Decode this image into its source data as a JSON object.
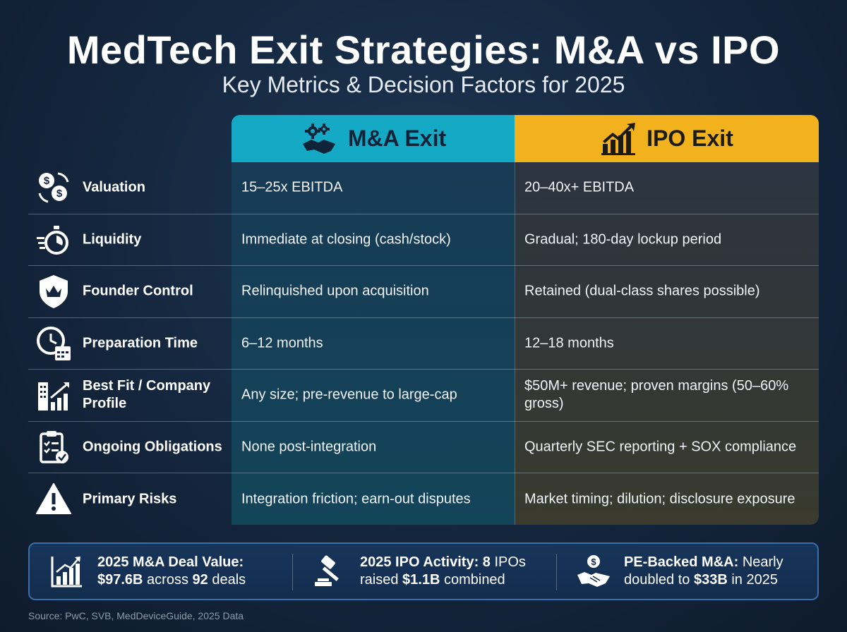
{
  "title": "MedTech Exit Strategies: M&A vs IPO",
  "subtitle": "Key Metrics & Decision Factors for 2025",
  "columns": {
    "ma": {
      "label": "M&A Exit",
      "color": "#14a9c4",
      "icon": "gears-handshake-icon"
    },
    "ipo": {
      "label": "IPO Exit",
      "color": "#f2b21e",
      "icon": "bar-chart-arrow-icon"
    }
  },
  "rows": [
    {
      "label": "Valuation",
      "icon": "dollar-exchange-icon",
      "ma": "15–25x EBITDA",
      "ipo": "20–40x+ EBITDA"
    },
    {
      "label": "Liquidity",
      "icon": "stopwatch-icon",
      "ma": "Immediate at closing (cash/stock)",
      "ipo": "Gradual; 180-day lockup period"
    },
    {
      "label": "Founder Control",
      "icon": "crown-shield-icon",
      "ma": "Relinquished upon acquisition",
      "ipo": "Retained (dual-class shares possible)"
    },
    {
      "label": "Preparation Time",
      "icon": "clock-calendar-icon",
      "ma": "6–12 months",
      "ipo": "12–18 months"
    },
    {
      "label": "Best Fit / Company Profile",
      "icon": "buildings-chart-icon",
      "ma": "Any size; pre-revenue to large-cap",
      "ipo": "$50M+ revenue; proven margins (50–60% gross)"
    },
    {
      "label": "Ongoing Obligations",
      "icon": "clipboard-check-icon",
      "ma": "None post-integration",
      "ipo": "Quarterly SEC reporting + SOX compliance"
    },
    {
      "label": "Primary Risks",
      "icon": "warning-icon",
      "ma": "Integration friction; earn-out disputes",
      "ipo": "Market timing; dilution; disclosure exposure"
    }
  ],
  "stats": [
    {
      "icon": "growth-chart-icon",
      "bold1": "2025 M&A Deal Value:",
      "bold2": "$97.6B",
      "mid": " across ",
      "bold3": "92",
      "end": " deals"
    },
    {
      "icon": "gavel-icon",
      "bold1": "2025 IPO Activity: 8",
      "t1": " IPOs",
      "t2": "raised ",
      "bold2": "$1.1B",
      "t3": " combined"
    },
    {
      "icon": "dollar-handshake-icon",
      "bold1": "PE-Backed M&A:",
      "t1": " Nearly",
      "t2": "doubled to ",
      "bold2": "$33B",
      "t3": " in 2025"
    }
  ],
  "source": "Source: PwC, SVB, MedDeviceGuide, 2025 Data"
}
